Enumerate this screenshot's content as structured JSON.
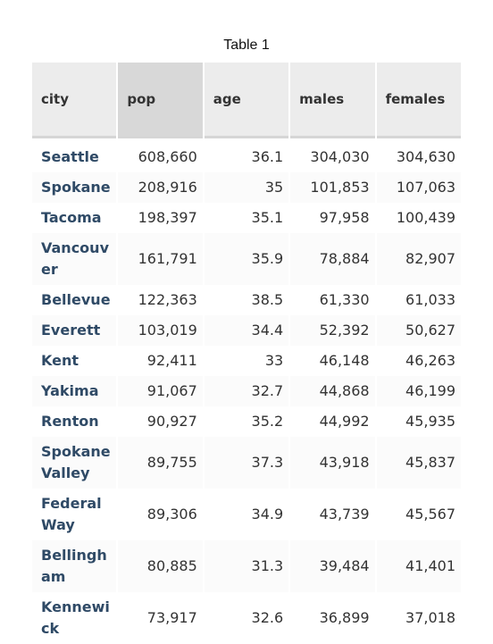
{
  "caption": "Table 1",
  "columns": [
    "city",
    "pop",
    "age",
    "males",
    "females"
  ],
  "rows": [
    {
      "city": "Seattle",
      "pop": "608,660",
      "age": "36.1",
      "males": "304,030",
      "females": "304,630"
    },
    {
      "city": "Spokane",
      "pop": "208,916",
      "age": "35",
      "males": "101,853",
      "females": "107,063"
    },
    {
      "city": "Tacoma",
      "pop": "198,397",
      "age": "35.1",
      "males": "97,958",
      "females": "100,439"
    },
    {
      "city": "Vancouver",
      "pop": "161,791",
      "age": "35.9",
      "males": "78,884",
      "females": "82,907"
    },
    {
      "city": "Bellevue",
      "pop": "122,363",
      "age": "38.5",
      "males": "61,330",
      "females": "61,033"
    },
    {
      "city": "Everett",
      "pop": "103,019",
      "age": "34.4",
      "males": "52,392",
      "females": "50,627"
    },
    {
      "city": "Kent",
      "pop": "92,411",
      "age": "33",
      "males": "46,148",
      "females": "46,263"
    },
    {
      "city": "Yakima",
      "pop": "91,067",
      "age": "32.7",
      "males": "44,868",
      "females": "46,199"
    },
    {
      "city": "Renton",
      "pop": "90,927",
      "age": "35.2",
      "males": "44,992",
      "females": "45,935"
    },
    {
      "city": "Spokane Valley",
      "pop": "89,755",
      "age": "37.3",
      "males": "43,918",
      "females": "45,837"
    },
    {
      "city": "Federal Way",
      "pop": "89,306",
      "age": "34.9",
      "males": "43,739",
      "females": "45,567"
    },
    {
      "city": "Bellingham",
      "pop": "80,885",
      "age": "31.3",
      "males": "39,484",
      "females": "41,401"
    },
    {
      "city": "Kennewick",
      "pop": "73,917",
      "age": "32.6",
      "males": "36,899",
      "females": "37,018"
    }
  ]
}
